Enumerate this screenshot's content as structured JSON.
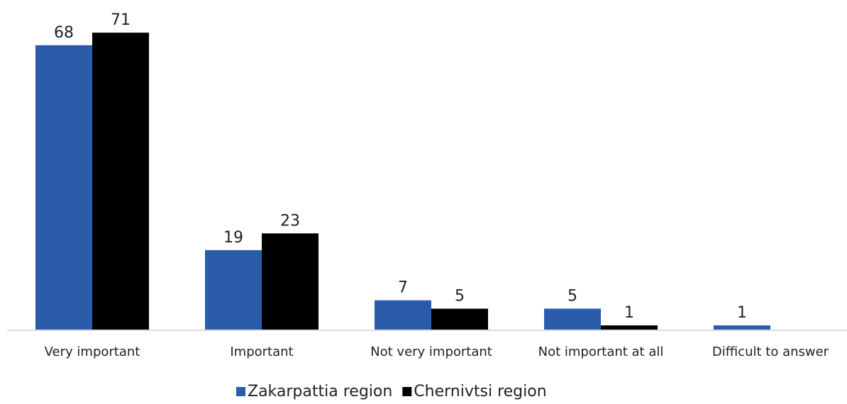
{
  "chart_data": {
    "type": "bar",
    "categories": [
      "Very important",
      "Important",
      "Not very important",
      "Not important at all",
      "Difficult to answer"
    ],
    "series": [
      {
        "name": "Zakarpattia region",
        "color": "#2a5caa",
        "values": [
          68,
          19,
          7,
          5,
          1
        ]
      },
      {
        "name": "Chernivtsi region",
        "color": "#000000",
        "values": [
          71,
          23,
          5,
          1,
          null
        ]
      }
    ],
    "legend": "bottom"
  }
}
